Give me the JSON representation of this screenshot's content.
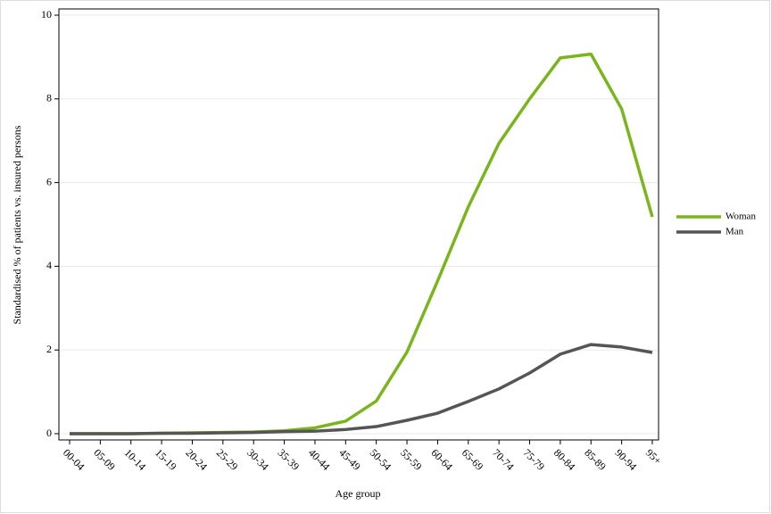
{
  "chart_data": {
    "type": "line",
    "x_label": "Age group",
    "y_label": "Standardised % of patients vs. insured persons",
    "categories": [
      "00-04",
      "05-09",
      "10-14",
      "15-19",
      "20-24",
      "25-29",
      "30-34",
      "35-39",
      "40-44",
      "45-49",
      "50-54",
      "55-59",
      "60-64",
      "65-69",
      "70-74",
      "75-79",
      "80-84",
      "85-89",
      "90-94",
      "95+"
    ],
    "series": [
      {
        "name": "Woman",
        "color": "#7ab51d",
        "values": [
          0,
          0,
          0,
          0.01,
          0.02,
          0.03,
          0.04,
          0.07,
          0.14,
          0.3,
          0.78,
          1.95,
          3.65,
          5.42,
          6.94,
          8.0,
          8.98,
          9.07,
          7.76,
          5.18
        ]
      },
      {
        "name": "Man",
        "color": "#555555",
        "values": [
          0,
          0,
          0,
          0.01,
          0.01,
          0.02,
          0.03,
          0.05,
          0.06,
          0.1,
          0.17,
          0.32,
          0.49,
          0.77,
          1.07,
          1.45,
          1.9,
          2.13,
          2.07,
          1.94
        ]
      }
    ],
    "ylim": [
      0,
      10
    ],
    "yticks": [
      0,
      2,
      4,
      6,
      8,
      10
    ],
    "grid": true,
    "legend": "right"
  }
}
